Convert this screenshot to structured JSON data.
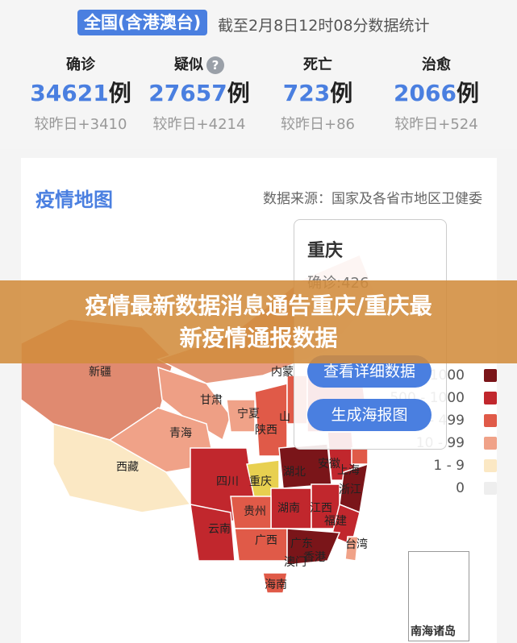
{
  "header": {
    "scope": "全国(含港澳台)",
    "as_of": "截至2月8日12时08分数据统计"
  },
  "stats": [
    {
      "label": "确诊",
      "value": "34621",
      "unit": "例",
      "delta": "较昨日+3410"
    },
    {
      "label": "疑似",
      "value": "27657",
      "unit": "例",
      "delta": "较昨日+4214",
      "help_icon": "question-circle-icon"
    },
    {
      "label": "死亡",
      "value": "723",
      "unit": "例",
      "delta": "较昨日+86"
    },
    {
      "label": "治愈",
      "value": "2066",
      "unit": "例",
      "delta": "较昨日+524"
    }
  ],
  "map": {
    "title": "疫情地图",
    "source": "数据来源：国家及各省市地区卫健委",
    "provinces": [
      "新疆",
      "内蒙",
      "甘肃",
      "宁夏",
      "青海",
      "陕西",
      "山",
      "西藏",
      "四川",
      "重庆",
      "湖北",
      "安徽",
      "上海",
      "浙江",
      "湖南",
      "江西",
      "贵州",
      "福建",
      "云南",
      "广西",
      "广东",
      "香港",
      "澳门",
      "台湾",
      "海南"
    ],
    "inset_label": "南海诸岛"
  },
  "tooltip": {
    "name": "重庆",
    "confirmed": "确诊:426",
    "detail_button": "查看详细数据",
    "poster_button": "生成海报图"
  },
  "legend": [
    {
      "label": "> 1000",
      "color": "#7a1519"
    },
    {
      "label": "500 - 1000",
      "color": "#c1272d"
    },
    {
      "label": "100 - 499",
      "color": "#e05a48"
    },
    {
      "label": "10 - 99",
      "color": "#f0a288"
    },
    {
      "label": "1 - 9",
      "color": "#fbe8c4"
    },
    {
      "label": "0",
      "color": "#eeeeee"
    }
  ],
  "banner": {
    "line1": "疫情最新数据消息通告重庆/重庆最",
    "line2": "新疫情通报数据"
  }
}
